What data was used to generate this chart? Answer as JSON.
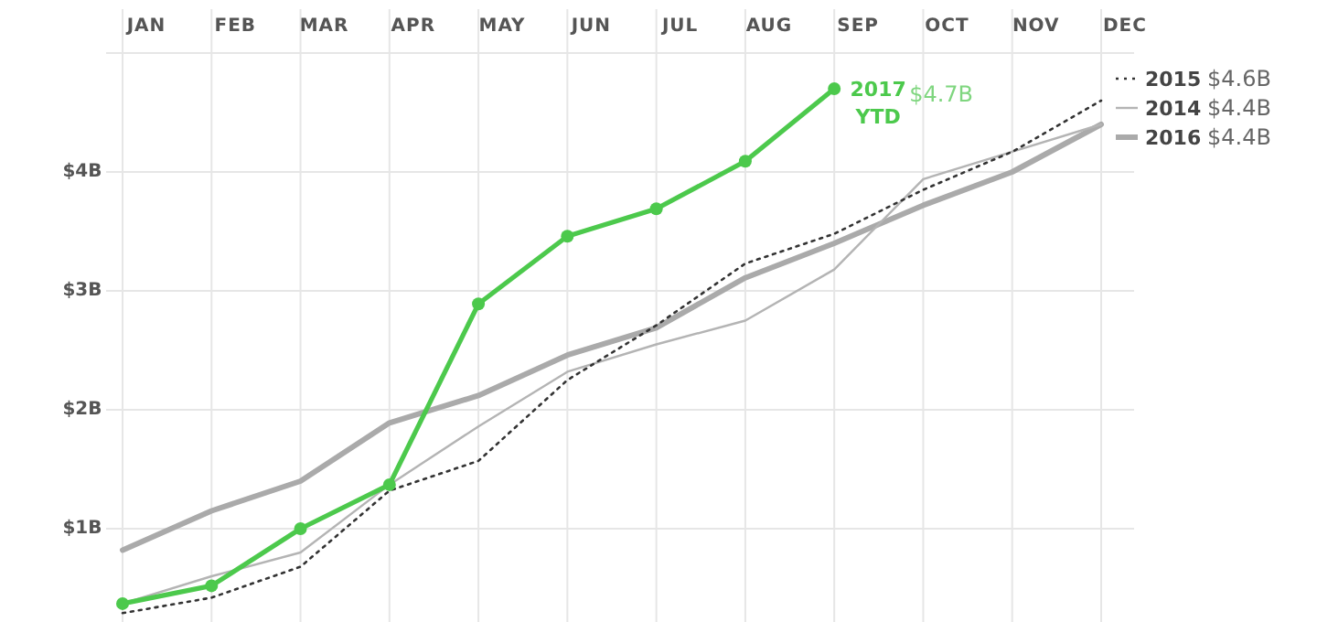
{
  "chart_data": {
    "type": "line",
    "categories": [
      "JAN",
      "FEB",
      "MAR",
      "APR",
      "MAY",
      "JUN",
      "JUL",
      "AUG",
      "SEP",
      "OCT",
      "NOV",
      "DEC"
    ],
    "ylim": [
      0.2,
      5
    ],
    "yticks": [
      {
        "value": 1,
        "label": "$1B"
      },
      {
        "value": 2,
        "label": "$2B"
      },
      {
        "value": 3,
        "label": "$3B"
      },
      {
        "value": 4,
        "label": "$4B"
      },
      {
        "value": 5,
        "label": null
      }
    ],
    "grid": true,
    "legend": "right",
    "annotations": [
      "$4.7B",
      "$4.6B",
      "$4.4B",
      "$4.4B"
    ],
    "series": [
      {
        "name": "2017 YTD",
        "color": "#4cc94c",
        "marker": "circle",
        "line_style": "solid",
        "values": [
          0.37,
          0.52,
          1.0,
          1.37,
          2.89,
          3.46,
          3.69,
          4.09,
          4.7,
          null,
          null,
          null
        ]
      },
      {
        "name": "2015",
        "color": "#333333",
        "marker": "none",
        "line_style": "dotted",
        "values": [
          0.29,
          0.42,
          0.68,
          1.32,
          1.57,
          2.25,
          2.71,
          3.23,
          3.48,
          3.85,
          4.17,
          4.6
        ]
      },
      {
        "name": "2014",
        "color": "#b4b4b4",
        "marker": "none",
        "line_style": "solid",
        "values": [
          0.37,
          0.6,
          0.8,
          1.37,
          1.86,
          2.32,
          2.55,
          2.75,
          3.18,
          3.94,
          4.17,
          4.4
        ]
      },
      {
        "name": "2016",
        "color": "#aaaaaa",
        "marker": "none",
        "line_style": "solid",
        "values": [
          0.82,
          1.15,
          1.4,
          1.89,
          2.12,
          2.46,
          2.69,
          3.11,
          3.4,
          3.72,
          4.0,
          4.4
        ]
      }
    ]
  }
}
